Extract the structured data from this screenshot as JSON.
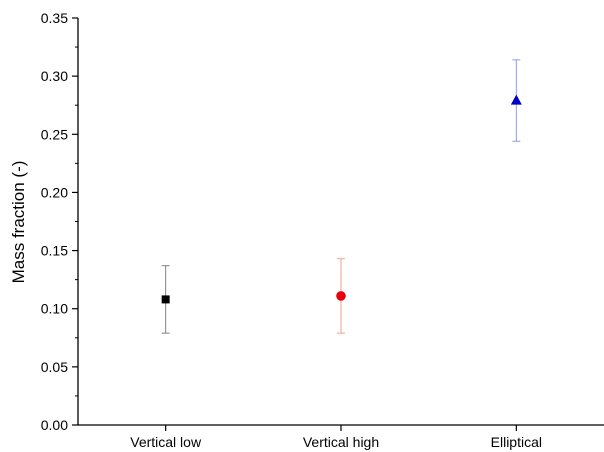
{
  "chart_data": {
    "type": "scatter",
    "title": "",
    "xlabel": "",
    "ylabel": "Mass fraction (-)",
    "categories": [
      "Vertical low",
      "Vertical high",
      "Elliptical"
    ],
    "ylim": [
      0,
      0.35
    ],
    "y_ticks": [
      "0.00",
      "0.05",
      "0.10",
      "0.15",
      "0.20",
      "0.25",
      "0.30",
      "0.35"
    ],
    "grid": false,
    "points": [
      {
        "category": "Vertical low",
        "y": 0.108,
        "err_low": 0.079,
        "err_high": 0.137,
        "marker": "square",
        "color": "#000000",
        "error_color": "#808080"
      },
      {
        "category": "Vertical high",
        "y": 0.111,
        "err_low": 0.079,
        "err_high": 0.143,
        "marker": "circle",
        "color": "#e8000b",
        "error_color": "#f4a08a"
      },
      {
        "category": "Elliptical",
        "y": 0.279,
        "err_low": 0.244,
        "err_high": 0.314,
        "marker": "triangle",
        "color": "#0000c8",
        "error_color": "#8c9cf0"
      }
    ]
  }
}
